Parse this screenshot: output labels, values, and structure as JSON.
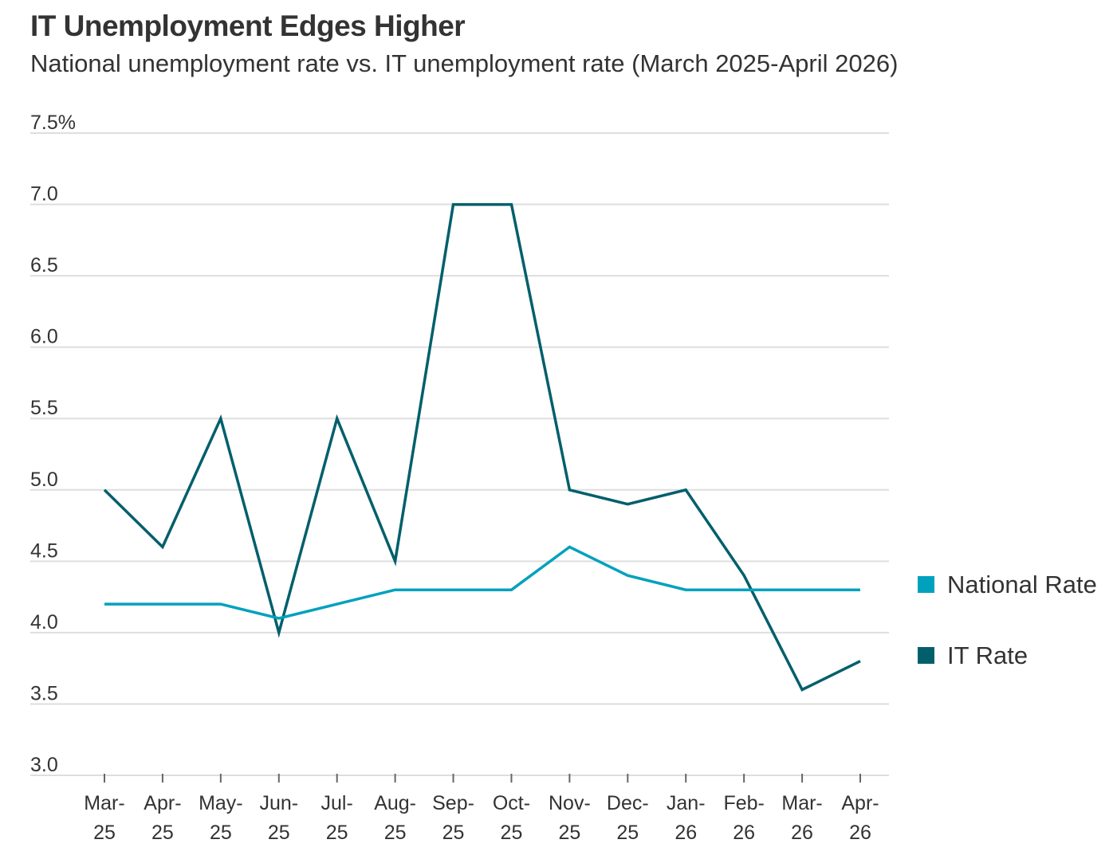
{
  "header": {
    "title": "IT Unemployment Edges Higher",
    "subtitle": "National unemployment rate vs. IT unemployment rate (March 2025-April 2026)"
  },
  "chart_data": {
    "type": "line",
    "title": "IT Unemployment Edges Higher",
    "subtitle": "National unemployment rate vs. IT unemployment rate (March 2025-April 2026)",
    "xlabel": "",
    "ylabel": "",
    "categories": [
      [
        "Mar-",
        "25"
      ],
      [
        "Apr-",
        "25"
      ],
      [
        "May-",
        "25"
      ],
      [
        "Jun-",
        "25"
      ],
      [
        "Jul-",
        "25"
      ],
      [
        "Aug-",
        "25"
      ],
      [
        "Sep-",
        "25"
      ],
      [
        "Oct-",
        "25"
      ],
      [
        "Nov-",
        "25"
      ],
      [
        "Dec-",
        "25"
      ],
      [
        "Jan-",
        "26"
      ],
      [
        "Feb-",
        "26"
      ],
      [
        "Mar-",
        "26"
      ],
      [
        "Apr-",
        "26"
      ]
    ],
    "ylim": [
      3.0,
      7.5
    ],
    "yticks": [
      3.0,
      3.5,
      4.0,
      4.5,
      5.0,
      5.5,
      6.0,
      6.5,
      7.0,
      7.5
    ],
    "ytick_labels": [
      "3.0",
      "3.5",
      "4.0",
      "4.5",
      "5.0",
      "5.5",
      "6.0",
      "6.5",
      "7.0",
      "7.5%"
    ],
    "grid": true,
    "legend_position": "right",
    "series": [
      {
        "name": "National Rate",
        "color": "#00a1bd",
        "values": [
          4.2,
          4.2,
          4.2,
          4.1,
          4.2,
          4.3,
          4.3,
          4.3,
          4.6,
          4.4,
          4.3,
          4.3,
          4.3,
          4.3
        ]
      },
      {
        "name": "IT Rate",
        "color": "#005f6b",
        "values": [
          5.0,
          4.6,
          5.5,
          4.0,
          5.5,
          4.5,
          7.0,
          7.0,
          5.0,
          4.9,
          5.0,
          4.4,
          3.6,
          3.8
        ]
      }
    ]
  }
}
